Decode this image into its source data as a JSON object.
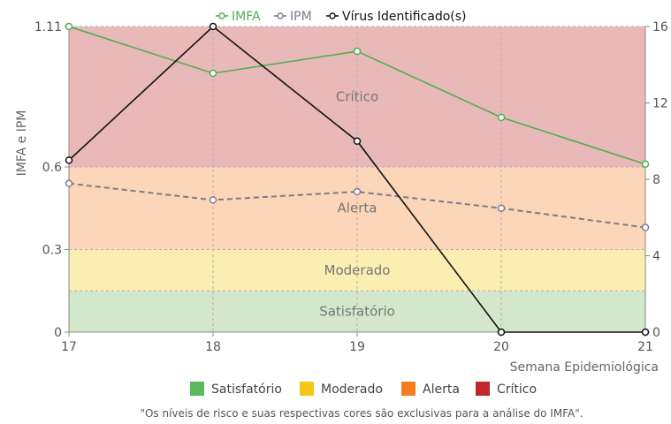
{
  "chart_data": {
    "type": "line",
    "x": [
      17,
      18,
      19,
      20,
      21
    ],
    "xlabel": "Semana Epidemiológica",
    "ylabel": "IMFA e IPM",
    "y_ticks": [
      "0",
      "0.3",
      "0.6",
      "1.11"
    ],
    "y_ticks_values": [
      0,
      0.3,
      0.6,
      1.11
    ],
    "ylim": [
      0,
      1.11
    ],
    "y2_ticks": [
      "0",
      "4",
      "8",
      "12",
      "16"
    ],
    "y2_ticks_values": [
      0,
      4,
      8,
      12,
      16
    ],
    "y2lim": [
      0,
      16
    ],
    "grid": "vertical dashed at each week",
    "series": [
      {
        "name": "IMFA",
        "axis": "left",
        "values": [
          1.11,
          0.94,
          1.02,
          0.78,
          0.61
        ],
        "color": "#4caf50",
        "style": "solid"
      },
      {
        "name": "IPM",
        "axis": "left",
        "values": [
          0.54,
          0.48,
          0.51,
          0.45,
          0.38
        ],
        "color": "#7d7a8f",
        "style": "dashed"
      },
      {
        "name": "Vírus Identificado(s)",
        "axis": "right",
        "values": [
          9,
          16,
          10,
          0,
          0
        ],
        "color": "#111111",
        "style": "solid"
      }
    ],
    "bands": [
      {
        "label": "Satisfatório",
        "from": 0,
        "to": 0.15,
        "color": "#d3e7cc"
      },
      {
        "label": "Moderado",
        "from": 0.15,
        "to": 0.3,
        "color": "#faeeb3"
      },
      {
        "label": "Alerta",
        "from": 0.3,
        "to": 0.6,
        "color": "#fcd6b8"
      },
      {
        "label": "Crítico",
        "from": 0.6,
        "to": 1.11,
        "color": "#e9b9b9"
      }
    ],
    "band_legend": [
      {
        "label": "Satisfatório",
        "color": "#5cb85c"
      },
      {
        "label": "Moderado",
        "color": "#f5c518"
      },
      {
        "label": "Alerta",
        "color": "#f57c1f"
      },
      {
        "label": "Crítico",
        "color": "#c0282d"
      }
    ],
    "legend_position": "top",
    "note": "\"Os níveis de risco e suas respectivas cores são exclusivas para a análise do IMFA\"."
  }
}
